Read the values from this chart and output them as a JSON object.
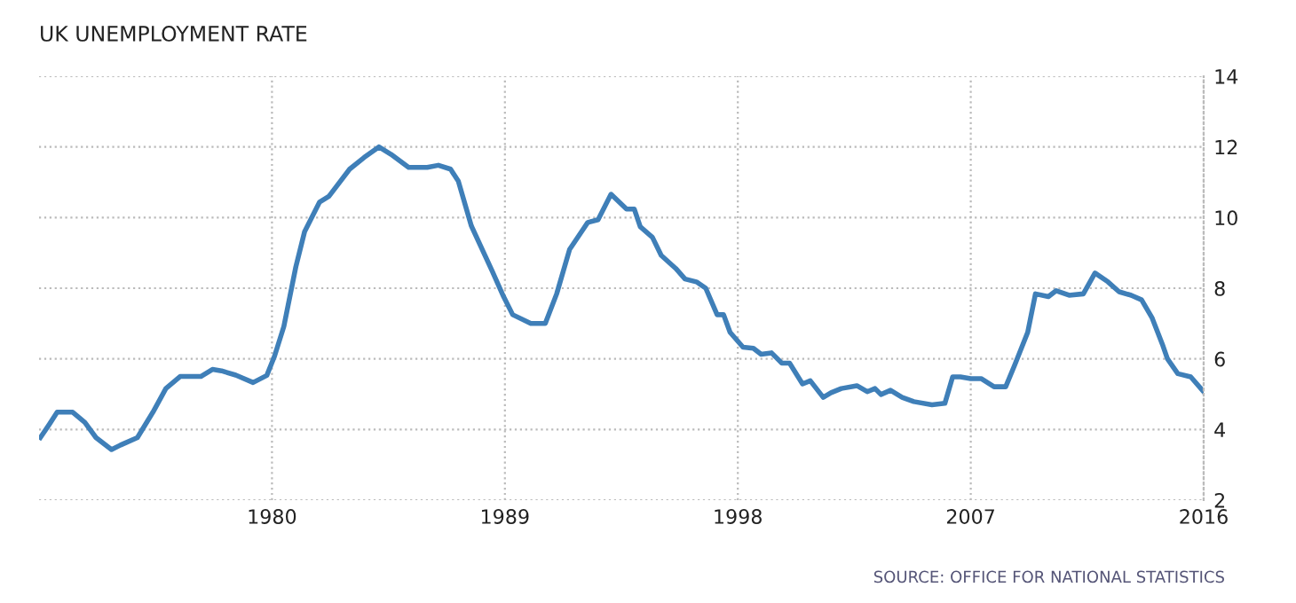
{
  "chart_data": {
    "type": "line",
    "title": "UK UNEMPLOYMENT RATE",
    "annotations": [
      "SOURCE: OFFICE FOR NATIONAL STATISTICS"
    ],
    "x": [
      1971.05,
      1971.4,
      1971.7,
      1972.3,
      1972.77,
      1973.2,
      1973.8,
      1974.15,
      1974.8,
      1975.4,
      1975.9,
      1976.45,
      1977.25,
      1977.7,
      1978.05,
      1978.6,
      1979.27,
      1979.8,
      1980.1,
      1980.46,
      1980.92,
      1981.26,
      1981.84,
      1982.2,
      1983.0,
      1983.56,
      1984.13,
      1984.6,
      1985.28,
      1986.0,
      1986.43,
      1986.9,
      1987.2,
      1987.7,
      1988.5,
      1988.95,
      1989.3,
      1990.0,
      1990.56,
      1991.0,
      1991.5,
      1992.2,
      1992.6,
      1993.1,
      1993.7,
      1994.0,
      1994.23,
      1994.7,
      1995.04,
      1995.6,
      1995.96,
      1996.4,
      1996.76,
      1997.2,
      1997.45,
      1997.7,
      1998.2,
      1998.6,
      1998.9,
      1999.3,
      1999.7,
      2000.0,
      2000.5,
      2000.8,
      2001.3,
      2001.6,
      2002.0,
      2002.6,
      2003.0,
      2003.3,
      2003.53,
      2003.9,
      2004.35,
      2004.8,
      2005.5,
      2006.0,
      2006.3,
      2006.6,
      2007.0,
      2007.4,
      2007.9,
      2008.35,
      2008.7,
      2009.2,
      2009.5,
      2010.0,
      2010.3,
      2010.8,
      2011.35,
      2011.8,
      2012.3,
      2012.73,
      2013.2,
      2013.6,
      2014.0,
      2014.4,
      2014.6,
      2015.0,
      2015.5,
      2016.0
    ],
    "series": [
      {
        "color": "#3f7fb8",
        "values": [
          3.77,
          4.15,
          4.49,
          4.49,
          4.2,
          3.77,
          3.43,
          3.56,
          3.77,
          4.49,
          5.16,
          5.5,
          5.5,
          5.7,
          5.66,
          5.54,
          5.33,
          5.53,
          6.08,
          6.92,
          8.6,
          9.6,
          10.44,
          10.6,
          11.37,
          11.7,
          12.0,
          11.79,
          11.42,
          11.42,
          11.48,
          11.37,
          11.03,
          9.77,
          8.5,
          7.76,
          7.25,
          7.0,
          7.0,
          7.84,
          9.1,
          9.86,
          9.94,
          10.66,
          10.24,
          10.24,
          9.74,
          9.44,
          8.93,
          8.56,
          8.26,
          8.18,
          8.0,
          7.25,
          7.25,
          6.75,
          6.33,
          6.3,
          6.13,
          6.17,
          5.88,
          5.88,
          5.29,
          5.38,
          4.91,
          5.04,
          5.16,
          5.24,
          5.07,
          5.16,
          4.99,
          5.11,
          4.91,
          4.79,
          4.7,
          4.74,
          5.49,
          5.49,
          5.44,
          5.44,
          5.21,
          5.21,
          5.83,
          6.75,
          7.84,
          7.76,
          7.93,
          7.8,
          7.84,
          8.43,
          8.18,
          7.9,
          7.8,
          7.67,
          7.17,
          6.42,
          6.0,
          5.58,
          5.49,
          5.07
        ]
      }
    ],
    "xlim": [
      1971,
      2016
    ],
    "xticks": [
      1980,
      1989,
      1998,
      2007,
      2016
    ],
    "ylim": [
      2,
      14
    ],
    "yticks": [
      2,
      4,
      6,
      8,
      10,
      12,
      14
    ],
    "grid": true,
    "legend": false,
    "marker": "none",
    "line_style": "solid"
  }
}
